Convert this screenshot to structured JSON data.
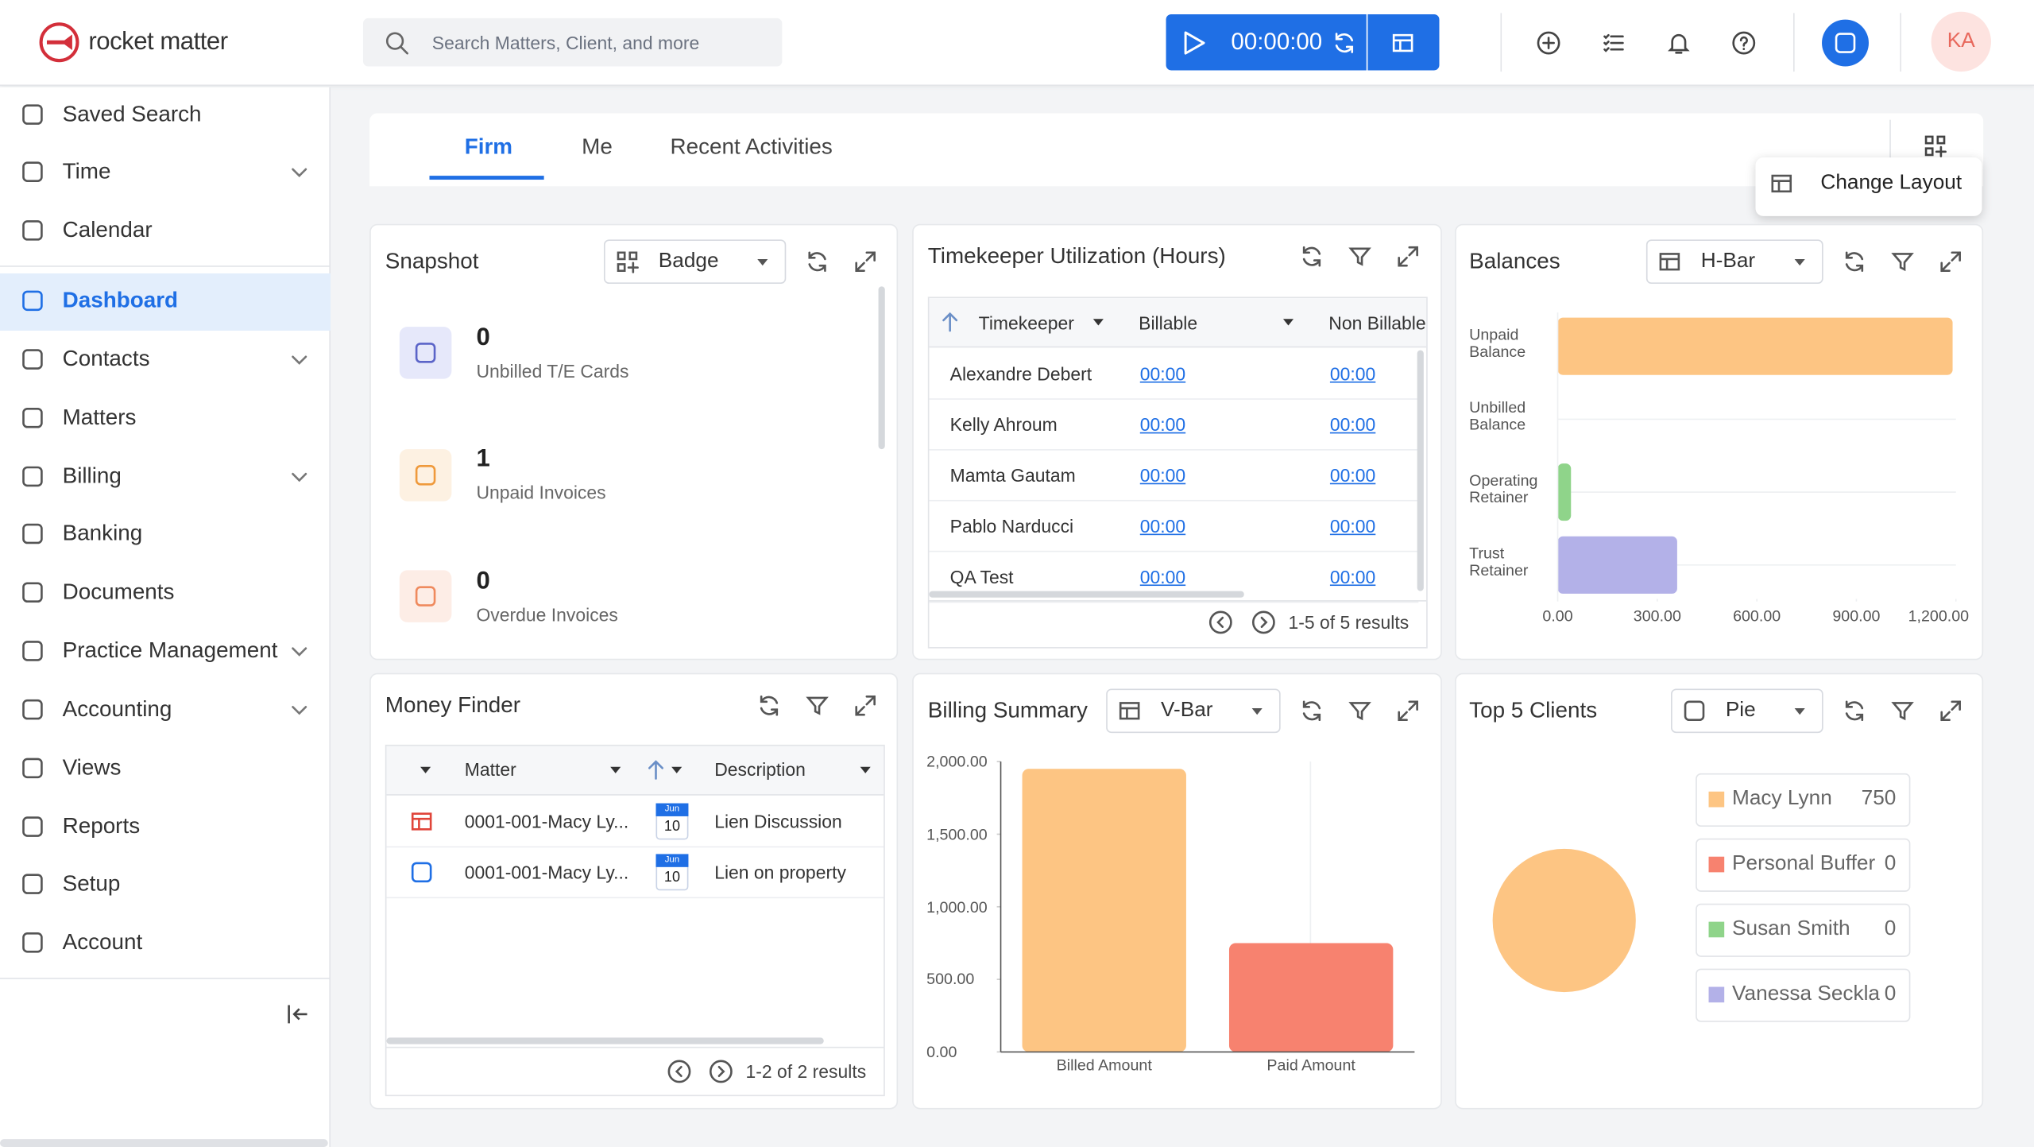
{
  "brand": "rocket matter",
  "search_placeholder": "Search Matters, Client, and more",
  "timer": "00:00:00",
  "avatar": "KA",
  "nav": [
    "Saved Search",
    "Time",
    "Calendar",
    "Dashboard",
    "Contacts",
    "Matters",
    "Billing",
    "Banking",
    "Documents",
    "Practice Management",
    "Accounting",
    "Views",
    "Reports",
    "Setup",
    "Account"
  ],
  "tabs": [
    "Firm",
    "Me",
    "Recent Activities"
  ],
  "change_layout": "Change Layout",
  "snapshot": {
    "title": "Snapshot",
    "view": "Badge",
    "items": [
      {
        "count": 0,
        "label": "Unbilled T/E Cards"
      },
      {
        "count": 1,
        "label": "Unpaid Invoices"
      },
      {
        "count": 0,
        "label": "Overdue Invoices"
      }
    ]
  },
  "timekeeper": {
    "title": "Timekeeper Utilization (Hours)",
    "columns": [
      "Timekeeper",
      "Billable",
      "Non Billable"
    ],
    "rows": [
      [
        "Alexandre Debert",
        "00:00",
        "00:00"
      ],
      [
        "Kelly Ahroum",
        "00:00",
        "00:00"
      ],
      [
        "Mamta Gautam",
        "00:00",
        "00:00"
      ],
      [
        "Pablo Narducci",
        "00:00",
        "00:00"
      ],
      [
        "QA Test",
        "00:00",
        "00:00"
      ]
    ],
    "pagination": "1-5 of 5 results"
  },
  "balances": {
    "title": "Balances",
    "view": "H-Bar",
    "chart_data": {
      "type": "hbar",
      "categories": [
        "Unpaid Balance",
        "Unbilled Balance",
        "Operating Retainer",
        "Trust Retainer"
      ],
      "values": [
        1190,
        0,
        40,
        360
      ],
      "colors": [
        "#fdc583",
        "#f7826f",
        "#8fd48a",
        "#b3b1e8"
      ],
      "xlim": [
        0,
        1200
      ],
      "xticks": [
        {
          "value": 0,
          "label": "0.00"
        },
        {
          "value": 300,
          "label": "300.00"
        },
        {
          "value": 600,
          "label": "600.00"
        },
        {
          "value": 900,
          "label": "900.00"
        },
        {
          "value": 1200,
          "label": "1,200.00"
        }
      ]
    }
  },
  "money_finder": {
    "title": "Money Finder",
    "columns": [
      "Matter",
      "Description"
    ],
    "rows": [
      {
        "matter": "0001-001-Macy Ly...",
        "month": "Jun",
        "day": "10",
        "description": "Lien Discussion"
      },
      {
        "matter": "0001-001-Macy Ly...",
        "month": "Jun",
        "day": "10",
        "description": "Lien on property"
      }
    ],
    "pagination": "1-2 of 2 results"
  },
  "billing_summary": {
    "title": "Billing Summary",
    "view": "V-Bar",
    "chart_data": {
      "type": "bar",
      "categories": [
        "Billed Amount",
        "Paid Amount"
      ],
      "values": [
        1950,
        750
      ],
      "colors": [
        "#fdc583",
        "#f7826f"
      ],
      "ylim": [
        0,
        2000
      ],
      "yticks": [
        {
          "value": 0,
          "label": "0.00"
        },
        {
          "value": 500,
          "label": "500.00"
        },
        {
          "value": 1000,
          "label": "1,000.00"
        },
        {
          "value": 1500,
          "label": "1,500.00"
        },
        {
          "value": 2000,
          "label": "2,000.00"
        }
      ]
    }
  },
  "top_clients": {
    "title": "Top 5 Clients",
    "view": "Pie",
    "chart_data": {
      "type": "pie",
      "categories": [
        "Macy Lynn",
        "Personal Buffer",
        "Susan Smith",
        "Vanessa Seckla"
      ],
      "values": [
        750,
        0,
        0,
        0
      ],
      "colors": [
        "#fdc583",
        "#f7826f",
        "#8fd48a",
        "#b3b1e8"
      ]
    }
  }
}
